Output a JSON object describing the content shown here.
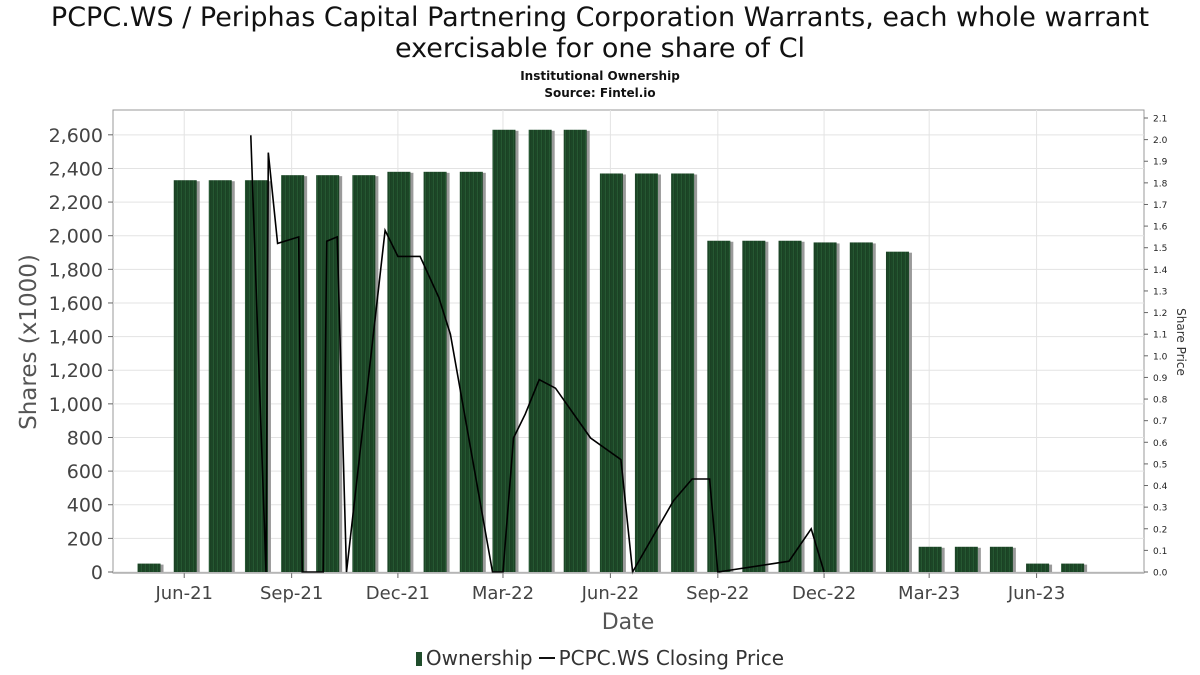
{
  "chart_data": {
    "type": "bar",
    "title": "PCPC.WS / Periphas Capital Partnering Corporation Warrants, each whole warrant exercisable for one share of Cl",
    "subtitle": "Institutional Ownership",
    "source": "Source: Fintel.io",
    "xlabel": "Date",
    "ylabel": "Shares (x1000)",
    "y2label": "Share Price",
    "ylim": [
      0,
      2700
    ],
    "y2lim": [
      0,
      2.1
    ],
    "xlim": [
      "2021-04-01",
      "2023-09-01"
    ],
    "yticks": [
      0,
      200,
      400,
      600,
      800,
      1000,
      1200,
      1400,
      1600,
      1800,
      2000,
      2200,
      2400,
      2600
    ],
    "yticklabels": [
      "0",
      "200",
      "400",
      "600",
      "800",
      "1,000",
      "1,200",
      "1,400",
      "1,600",
      "1,800",
      "2,000",
      "2,200",
      "2,400",
      "2,600"
    ],
    "y2ticks": [
      "0.0",
      "0.1",
      "0.2",
      "0.3",
      "0.4",
      "0.5",
      "0.6",
      "0.7",
      "0.8",
      "0.9",
      "1.0",
      "1.1",
      "1.2",
      "1.3",
      "1.4",
      "1.5",
      "1.6",
      "1.7",
      "1.8",
      "1.9",
      "2.0",
      "2.1"
    ],
    "xticks": [
      {
        "date": "2021-06-01",
        "label": "Jun-21"
      },
      {
        "date": "2021-09-01",
        "label": "Sep-21"
      },
      {
        "date": "2021-12-01",
        "label": "Dec-21"
      },
      {
        "date": "2022-03-01",
        "label": "Mar-22"
      },
      {
        "date": "2022-06-01",
        "label": "Jun-22"
      },
      {
        "date": "2022-09-01",
        "label": "Sep-22"
      },
      {
        "date": "2022-12-01",
        "label": "Dec-22"
      },
      {
        "date": "2023-03-01",
        "label": "Mar-23"
      },
      {
        "date": "2023-06-01",
        "label": "Jun-23"
      }
    ],
    "grid": true,
    "legend_position": "bottom",
    "series": [
      {
        "name": "Ownership",
        "type": "bar",
        "color": "#1f4d2b",
        "points": [
          {
            "x": "2021-05-01",
            "y": 50
          },
          {
            "x": "2021-06-01",
            "y": 2330
          },
          {
            "x": "2021-07-01",
            "y": 2330
          },
          {
            "x": "2021-08-01",
            "y": 2330
          },
          {
            "x": "2021-09-01",
            "y": 2360
          },
          {
            "x": "2021-10-01",
            "y": 2360
          },
          {
            "x": "2021-11-01",
            "y": 2360
          },
          {
            "x": "2021-12-01",
            "y": 2380
          },
          {
            "x": "2022-01-01",
            "y": 2380
          },
          {
            "x": "2022-02-01",
            "y": 2380
          },
          {
            "x": "2022-03-01",
            "y": 2630
          },
          {
            "x": "2022-04-01",
            "y": 2630
          },
          {
            "x": "2022-05-01",
            "y": 2630
          },
          {
            "x": "2022-06-01",
            "y": 2370
          },
          {
            "x": "2022-07-01",
            "y": 2370
          },
          {
            "x": "2022-08-01",
            "y": 2370
          },
          {
            "x": "2022-09-01",
            "y": 1970
          },
          {
            "x": "2022-10-01",
            "y": 1970
          },
          {
            "x": "2022-11-01",
            "y": 1970
          },
          {
            "x": "2022-12-01",
            "y": 1960
          },
          {
            "x": "2023-01-01",
            "y": 1960
          },
          {
            "x": "2023-02-01",
            "y": 1905
          },
          {
            "x": "2023-03-01",
            "y": 150
          },
          {
            "x": "2023-04-01",
            "y": 150
          },
          {
            "x": "2023-05-01",
            "y": 150
          },
          {
            "x": "2023-06-01",
            "y": 50
          },
          {
            "x": "2023-07-01",
            "y": 50
          }
        ]
      },
      {
        "name": "PCPC.WS Closing Price",
        "type": "line",
        "color": "#000000",
        "points": [
          {
            "x": "2021-07-28",
            "y": 2.02
          },
          {
            "x": "2021-08-10",
            "y": 0.0
          },
          {
            "x": "2021-08-12",
            "y": 1.94
          },
          {
            "x": "2021-08-20",
            "y": 1.52
          },
          {
            "x": "2021-09-07",
            "y": 1.55
          },
          {
            "x": "2021-09-10",
            "y": 0.0
          },
          {
            "x": "2021-09-28",
            "y": 0.0
          },
          {
            "x": "2021-10-01",
            "y": 1.53
          },
          {
            "x": "2021-10-10",
            "y": 1.55
          },
          {
            "x": "2021-10-18",
            "y": 0.0
          },
          {
            "x": "2021-11-20",
            "y": 1.58
          },
          {
            "x": "2021-12-01",
            "y": 1.46
          },
          {
            "x": "2021-12-20",
            "y": 1.46
          },
          {
            "x": "2022-01-05",
            "y": 1.27
          },
          {
            "x": "2022-01-15",
            "y": 1.1
          },
          {
            "x": "2022-02-20",
            "y": 0.0
          },
          {
            "x": "2022-03-01",
            "y": 0.0
          },
          {
            "x": "2022-03-10",
            "y": 0.62
          },
          {
            "x": "2022-03-20",
            "y": 0.73
          },
          {
            "x": "2022-04-01",
            "y": 0.89
          },
          {
            "x": "2022-04-15",
            "y": 0.85
          },
          {
            "x": "2022-05-15",
            "y": 0.62
          },
          {
            "x": "2022-06-10",
            "y": 0.52
          },
          {
            "x": "2022-06-20",
            "y": 0.0
          },
          {
            "x": "2022-07-25",
            "y": 0.33
          },
          {
            "x": "2022-08-10",
            "y": 0.43
          },
          {
            "x": "2022-08-25",
            "y": 0.43
          },
          {
            "x": "2022-09-01",
            "y": 0.0
          },
          {
            "x": "2022-11-01",
            "y": 0.05
          },
          {
            "x": "2022-11-20",
            "y": 0.2
          },
          {
            "x": "2022-12-01",
            "y": 0.0
          }
        ]
      }
    ]
  }
}
